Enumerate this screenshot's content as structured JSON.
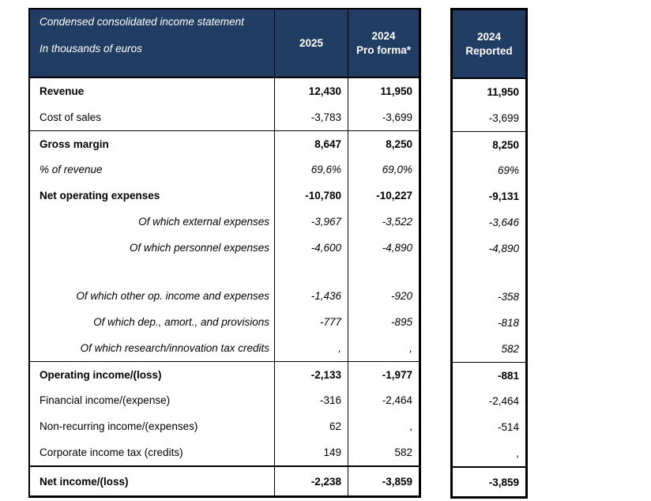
{
  "colors": {
    "header_bg": "#223d63",
    "header_text": "#ffffff",
    "border": "#000000",
    "text": "#000000"
  },
  "main_table": {
    "title": "Condensed consolidated income statement",
    "subtitle": "In thousands of euros",
    "col_2025_label": "2025",
    "col_proforma_line1": "2024",
    "col_proforma_line2": "Pro forma*"
  },
  "reported_table": {
    "col_line1": "2024",
    "col_line2": "Reported"
  },
  "rows": [
    {
      "label": "Revenue",
      "v2025": "12,430",
      "v2024_proforma": "11,950",
      "v2024_reported": "11,950",
      "style": "bold"
    },
    {
      "label": "Cost of sales",
      "v2025": "-3,783",
      "v2024_proforma": "-3,699",
      "v2024_reported": "-3,699",
      "style": "normal"
    },
    {
      "label": "Gross margin",
      "v2025": "8,647",
      "v2024_proforma": "8,250",
      "v2024_reported": "8,250",
      "style": "bold",
      "line_above": true
    },
    {
      "label": "% of revenue",
      "v2025": "69,6%",
      "v2024_proforma": "69,0%",
      "v2024_reported": "69%",
      "style": "italic"
    },
    {
      "label": "Net operating expenses",
      "v2025": "-10,780",
      "v2024_proforma": "-10,227",
      "v2024_reported": "-9,131",
      "style": "bold"
    },
    {
      "label": "Of which external expenses",
      "v2025": "-3,967",
      "v2024_proforma": "-3,522",
      "v2024_reported": "-3,646",
      "style": "italic",
      "label_align": "right"
    },
    {
      "label": "Of which personnel expenses",
      "v2025": "-4,600",
      "v2024_proforma": "-4,890",
      "v2024_reported": "-4,890",
      "style": "italic",
      "label_align": "right"
    },
    {
      "spacer": true
    },
    {
      "label": "Of which other op. income and expenses",
      "v2025": "-1,436",
      "v2024_proforma": "-920",
      "v2024_reported": "-358",
      "style": "italic",
      "label_align": "right"
    },
    {
      "label": "Of which dep., amort., and provisions",
      "v2025": "-777",
      "v2024_proforma": "-895",
      "v2024_reported": "-818",
      "style": "italic",
      "label_align": "right"
    },
    {
      "label": "Of which research/innovation tax credits",
      "v2025": ",",
      "v2024_proforma": ",",
      "v2024_reported": "582",
      "style": "italic",
      "label_align": "right"
    },
    {
      "label": "Operating income/(loss)",
      "v2025": "-2,133",
      "v2024_proforma": "-1,977",
      "v2024_reported": "-881",
      "style": "bold",
      "line_above": true
    },
    {
      "label": "Financial income/(expense)",
      "v2025": "-316",
      "v2024_proforma": "-2,464",
      "v2024_reported": "-2,464",
      "style": "normal"
    },
    {
      "label": "Non-recurring income/(expenses)",
      "v2025": "62",
      "v2024_proforma": ",",
      "v2024_reported": "-514",
      "style": "normal"
    },
    {
      "label": "Corporate income tax (credits)",
      "v2025": "149",
      "v2024_proforma": "582",
      "v2024_reported": ",",
      "style": "normal"
    },
    {
      "label": "Net income/(loss)",
      "v2025": "-2,238",
      "v2024_proforma": "-3,859",
      "v2024_reported": "-3,859",
      "style": "bold",
      "line_above": true,
      "thick_line": true
    }
  ]
}
